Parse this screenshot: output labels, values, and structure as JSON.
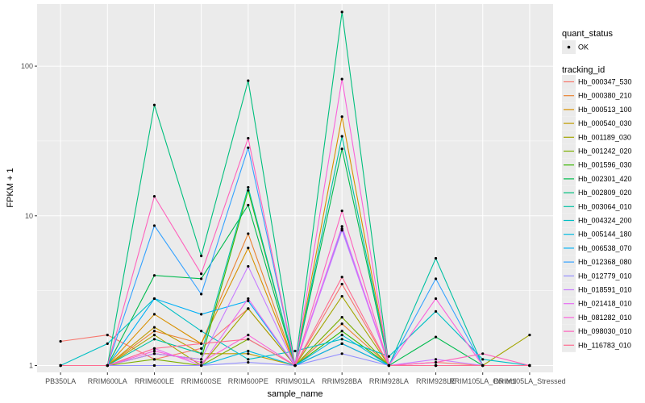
{
  "chart_data": {
    "type": "line",
    "xlabel": "sample_name",
    "ylabel": "FPKM + 1",
    "y_scale": "log10",
    "ylim": [
      0.9,
      260
    ],
    "y_ticks": [
      1,
      10,
      100
    ],
    "y_tick_labels": [
      "1",
      "10",
      "100"
    ],
    "grid": true,
    "panel_background": "#ebebeb",
    "legend_position": "right",
    "categories": [
      "PB350LA",
      "RRIM600LA",
      "RRIM600LE",
      "RRIM600SE",
      "RRIM600PE",
      "RRIM901LA",
      "RRIM928BA",
      "RRIM928LA",
      "RRIM928LE",
      "RRIM105LA_Control",
      "RRIM105LA_Stressed"
    ],
    "quant_status_legend": {
      "title": "quant_status",
      "items": [
        "OK"
      ]
    },
    "series_legend_title": "tracking_id",
    "series": [
      {
        "name": "Hb_000347_530",
        "color": "#F8766D",
        "values": [
          1.45,
          1.6,
          1.1,
          1.3,
          2.4,
          1.0,
          3.5,
          1.0,
          1.05,
          1.0,
          1.0
        ]
      },
      {
        "name": "Hb_000380_210",
        "color": "#EA8331",
        "values": [
          1.0,
          1.0,
          1.7,
          1.4,
          7.6,
          1.0,
          1.9,
          1.0,
          1.0,
          1.0,
          1.0
        ]
      },
      {
        "name": "Hb_000513_100",
        "color": "#D89000",
        "values": [
          1.0,
          1.0,
          2.2,
          1.4,
          6.1,
          1.0,
          46.0,
          1.0,
          1.0,
          1.0,
          1.0
        ]
      },
      {
        "name": "Hb_000540_030",
        "color": "#C09B00",
        "values": [
          1.0,
          1.0,
          1.8,
          1.2,
          1.2,
          1.0,
          1.4,
          1.0,
          1.0,
          1.0,
          1.0
        ]
      },
      {
        "name": "Hb_001189_030",
        "color": "#A3A500",
        "values": [
          1.0,
          1.0,
          1.6,
          1.0,
          2.4,
          1.0,
          2.9,
          1.0,
          1.0,
          1.0,
          1.6
        ]
      },
      {
        "name": "Hb_001242_020",
        "color": "#7CAE00",
        "values": [
          1.0,
          1.0,
          1.1,
          1.0,
          1.5,
          1.0,
          2.1,
          1.0,
          1.0,
          1.0,
          1.0
        ]
      },
      {
        "name": "Hb_001596_030",
        "color": "#39B600",
        "values": [
          1.0,
          1.0,
          1.2,
          1.1,
          14.8,
          1.0,
          1.7,
          1.0,
          1.0,
          1.0,
          1.0
        ]
      },
      {
        "name": "Hb_002301_420",
        "color": "#00BB4E",
        "values": [
          1.0,
          1.0,
          4.0,
          3.8,
          11.8,
          1.0,
          28.0,
          1.0,
          1.55,
          1.0,
          1.0
        ]
      },
      {
        "name": "Hb_002809_020",
        "color": "#00BF7D",
        "values": [
          1.0,
          1.0,
          55.0,
          5.4,
          80.0,
          1.0,
          230.0,
          1.0,
          1.0,
          1.0,
          1.0
        ]
      },
      {
        "name": "Hb_003064_010",
        "color": "#00C1A3",
        "values": [
          1.0,
          1.0,
          1.5,
          1.2,
          15.5,
          1.0,
          34.0,
          1.0,
          5.2,
          1.0,
          1.0
        ]
      },
      {
        "name": "Hb_004324_200",
        "color": "#00BFC4",
        "values": [
          1.0,
          1.4,
          2.8,
          1.7,
          1.1,
          1.25,
          1.5,
          1.15,
          2.3,
          1.1,
          1.0
        ]
      },
      {
        "name": "Hb_005144_180",
        "color": "#00BAE0",
        "values": [
          1.0,
          1.0,
          1.0,
          1.0,
          1.25,
          1.0,
          1.6,
          1.0,
          1.0,
          1.0,
          1.0
        ]
      },
      {
        "name": "Hb_006538_070",
        "color": "#00B0F6",
        "values": [
          1.0,
          1.0,
          2.8,
          2.2,
          2.7,
          1.0,
          1.4,
          1.0,
          1.0,
          1.0,
          1.0
        ]
      },
      {
        "name": "Hb_012368_080",
        "color": "#35A2FF",
        "values": [
          1.0,
          1.0,
          8.6,
          3.0,
          28.5,
          1.0,
          8.2,
          1.0,
          3.8,
          1.0,
          1.0
        ]
      },
      {
        "name": "Hb_012779_010",
        "color": "#9590FF",
        "values": [
          1.0,
          1.0,
          1.0,
          1.0,
          1.05,
          1.0,
          1.2,
          1.0,
          1.0,
          1.0,
          1.0
        ]
      },
      {
        "name": "Hb_018591_010",
        "color": "#C77CFF",
        "values": [
          1.0,
          1.0,
          1.2,
          1.1,
          4.6,
          1.0,
          8.0,
          1.0,
          1.1,
          1.0,
          1.0
        ]
      },
      {
        "name": "Hb_021418_010",
        "color": "#E76BF3",
        "values": [
          1.0,
          1.0,
          1.3,
          1.0,
          2.8,
          1.0,
          8.5,
          1.0,
          1.0,
          1.0,
          1.0
        ]
      },
      {
        "name": "Hb_081282_010",
        "color": "#FA62DB",
        "values": [
          1.0,
          1.0,
          1.25,
          1.05,
          1.6,
          1.0,
          82.0,
          1.0,
          2.8,
          1.0,
          1.0
        ]
      },
      {
        "name": "Hb_098030_010",
        "color": "#FF62BC",
        "values": [
          1.0,
          1.0,
          13.5,
          4.1,
          33.0,
          1.0,
          10.8,
          1.0,
          1.05,
          1.2,
          1.0
        ]
      },
      {
        "name": "Hb_116783_010",
        "color": "#FF6C91",
        "values": [
          1.0,
          1.0,
          1.3,
          1.4,
          1.5,
          1.0,
          3.9,
          1.0,
          1.0,
          1.0,
          1.0
        ]
      }
    ]
  }
}
